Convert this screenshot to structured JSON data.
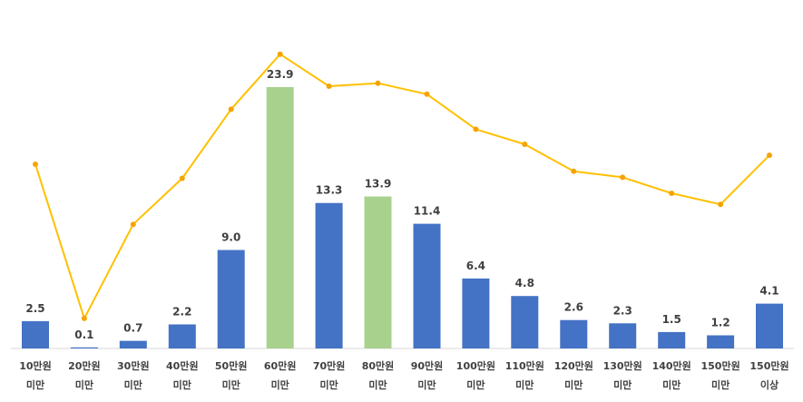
{
  "chart_data": {
    "type": "bar",
    "title": "",
    "xlabel": "",
    "ylabel": "",
    "categories": [
      [
        "10만원",
        "미만"
      ],
      [
        "20만원",
        "미만"
      ],
      [
        "30만원",
        "미만"
      ],
      [
        "40만원",
        "미만"
      ],
      [
        "50만원",
        "미만"
      ],
      [
        "60만원",
        "미만"
      ],
      [
        "70만원",
        "미만"
      ],
      [
        "80만원",
        "미만"
      ],
      [
        "90만원",
        "미만"
      ],
      [
        "100만원",
        "미만"
      ],
      [
        "110만원",
        "미만"
      ],
      [
        "120만원",
        "미만"
      ],
      [
        "130만원",
        "미만"
      ],
      [
        "140만원",
        "미만"
      ],
      [
        "150만원",
        "미만"
      ],
      [
        "150만원",
        "이상"
      ]
    ],
    "series": [
      {
        "type": "bar",
        "values": [
          2.5,
          0.1,
          0.7,
          2.2,
          9.0,
          23.9,
          13.3,
          13.9,
          11.4,
          6.4,
          4.8,
          2.6,
          2.3,
          1.5,
          1.2,
          4.1
        ],
        "value_labels": [
          "2.5",
          "0.1",
          "0.7",
          "2.2",
          "9.0",
          "23.9",
          "13.3",
          "13.9",
          "11.4",
          "6.4",
          "4.8",
          "2.6",
          "2.3",
          "1.5",
          "1.2",
          "4.1"
        ],
        "color": "#4472C4",
        "highlight_color": "#A9D18E",
        "highlight_indices": [
          5,
          7
        ]
      },
      {
        "type": "line",
        "values": [
          184,
          30,
          124,
          170,
          239,
          294,
          262,
          265,
          254,
          219,
          204,
          177,
          171,
          155,
          144,
          193
        ],
        "color": "#FFC000",
        "marker_color": "#F5A300",
        "ylim": [
          0,
          330
        ]
      }
    ],
    "ylim": [
      0,
      26
    ],
    "grid": false,
    "legend": "none"
  }
}
